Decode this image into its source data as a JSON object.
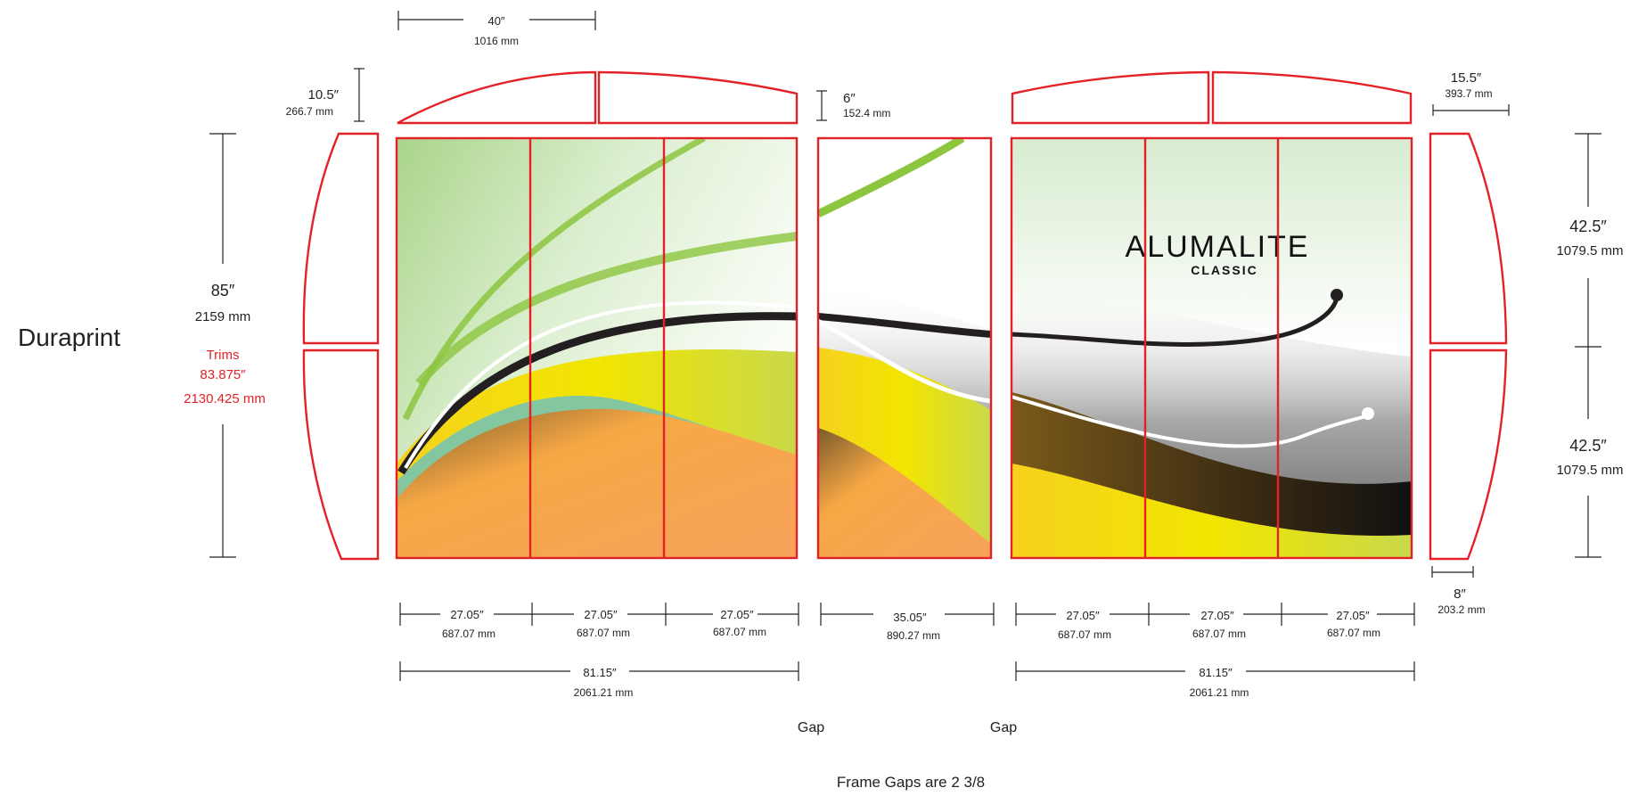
{
  "brand": {
    "main": "ALUMALITE",
    "sub": "CLASSIC"
  },
  "colors": {
    "frame": "#e32228",
    "line": "#222222",
    "accent_green": "#8cc63f",
    "accent_yellow": "#f2e500",
    "accent_orange": "#f7a35c"
  },
  "labels": {
    "product": "Duraprint",
    "footer": "Frame Gaps are 2 3/8",
    "gap_left": "Gap",
    "gap_right": "Gap"
  },
  "dims": {
    "top_width": {
      "in": "40″",
      "mm": "1016 mm"
    },
    "left_header_h": {
      "in": "10.5″",
      "mm": "266.7 mm"
    },
    "center_header_h": {
      "in": "6″",
      "mm": "152.4 mm"
    },
    "right_header_w": {
      "in": "15.5″",
      "mm": "393.7 mm"
    },
    "total_height": {
      "in": "85″",
      "mm": "2159 mm"
    },
    "trims": {
      "label": "Trims",
      "in": "83.875″",
      "mm": "2130.425 mm"
    },
    "right_upper": {
      "in": "42.5″",
      "mm": "1079.5 mm"
    },
    "right_lower": {
      "in": "42.5″",
      "mm": "1079.5 mm"
    },
    "end_cap_w": {
      "in": "8″",
      "mm": "203.2 mm"
    },
    "panels": [
      {
        "in": "27.05″",
        "mm": "687.07 mm"
      },
      {
        "in": "27.05″",
        "mm": "687.07 mm"
      },
      {
        "in": "27.05″",
        "mm": "687.07 mm"
      },
      {
        "in": "35.05″",
        "mm": "890.27 mm"
      },
      {
        "in": "27.05″",
        "mm": "687.07 mm"
      },
      {
        "in": "27.05″",
        "mm": "687.07 mm"
      },
      {
        "in": "27.05″",
        "mm": "687.07 mm"
      }
    ],
    "left_group": {
      "in": "81.15″",
      "mm": "2061.21 mm"
    },
    "right_group": {
      "in": "81.15″",
      "mm": "2061.21 mm"
    }
  }
}
